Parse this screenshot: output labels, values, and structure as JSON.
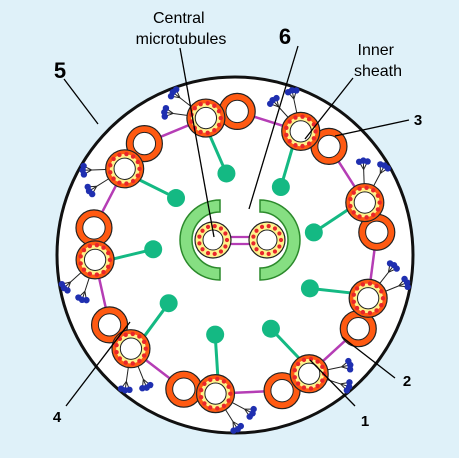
{
  "labels": {
    "central_microtubules": [
      "Central",
      "microtubules"
    ],
    "inner_sheath": [
      "Inner",
      "sheath"
    ],
    "n1": "1",
    "n2": "2",
    "n3": "3",
    "n4": "4",
    "n5": "5",
    "n6": "6"
  },
  "colors": {
    "background": "#dff1f9",
    "axoneme_fill": "#ffffff",
    "tubule_outer": "#ff5a12",
    "tubule_inner": "#fff28c",
    "dot": "#e8262b",
    "dynein_arm": "#1f2fb0",
    "nexin_link": "#b53db5",
    "radial_spoke": "#14b983",
    "inner_sheath": "#86df82"
  }
}
